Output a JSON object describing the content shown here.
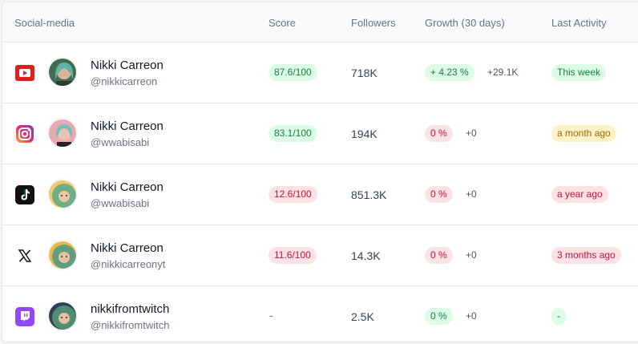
{
  "headers": {
    "social": "Social-media",
    "score": "Score",
    "followers": "Followers",
    "growth": "Growth (30 days)",
    "activity": "Last Activity"
  },
  "rows": [
    {
      "platform": "youtube-icon",
      "name": "Nikki Carreon",
      "handle": "@nikkicarreon",
      "score": "87.6/100",
      "score_status": "good",
      "followers": "718K",
      "growth_pct": "+ 4.23 %",
      "growth_status": "good",
      "growth_abs": "+29.1K",
      "activity": "This week",
      "activity_status": "good"
    },
    {
      "platform": "instagram-icon",
      "name": "Nikki Carreon",
      "handle": "@wwabisabi",
      "score": "83.1/100",
      "score_status": "good",
      "followers": "194K",
      "growth_pct": "0 %",
      "growth_status": "bad",
      "growth_abs": "+0",
      "activity": "a month ago",
      "activity_status": "warn"
    },
    {
      "platform": "tiktok-icon",
      "name": "Nikki Carreon",
      "handle": "@wwabisabi",
      "score": "12.6/100",
      "score_status": "bad",
      "followers": "851.3K",
      "growth_pct": "0 %",
      "growth_status": "bad",
      "growth_abs": "+0",
      "activity": "a year ago",
      "activity_status": "bad"
    },
    {
      "platform": "x-icon",
      "name": "Nikki Carreon",
      "handle": "@nikkicarreonyt",
      "score": "11.6/100",
      "score_status": "bad",
      "followers": "14.3K",
      "growth_pct": "0 %",
      "growth_status": "bad",
      "growth_abs": "+0",
      "activity": "3 months ago",
      "activity_status": "bad"
    },
    {
      "platform": "twitch-icon",
      "name": "nikkifromtwitch",
      "handle": "@nikkifromtwitch",
      "score": "-",
      "score_status": "none",
      "followers": "2.5K",
      "growth_pct": "0 %",
      "growth_status": "good",
      "growth_abs": "+0",
      "activity": "-",
      "activity_status": "good"
    }
  ],
  "colors": {
    "good_bg": "#dcfce7",
    "good_fg": "#15803d",
    "bad_bg": "#fde2e4",
    "bad_fg": "#be123c",
    "warn_bg": "#fef3c7",
    "warn_fg": "#a16207"
  }
}
